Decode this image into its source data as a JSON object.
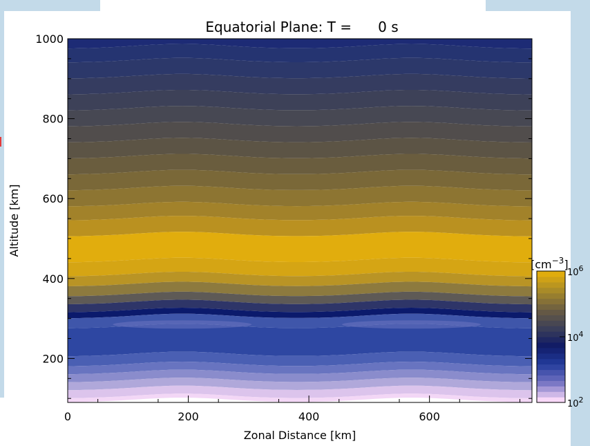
{
  "chart_data": {
    "type": "heatmap",
    "title": "Equatorial Plane: T =      0 s",
    "xlabel": "Zonal Distance [km]",
    "ylabel": "Altitude [km]",
    "xlim": [
      0,
      770
    ],
    "ylim": [
      90,
      1000
    ],
    "x_ticks": [
      0,
      200,
      400,
      600
    ],
    "y_ticks": [
      200,
      400,
      600,
      800,
      1000
    ],
    "colorbar": {
      "label": "[cm^-3]",
      "scale": "log",
      "range": [
        100,
        1000000
      ],
      "tick_labels": [
        "10^2",
        "10^4",
        "10^6"
      ],
      "colors": [
        "#f8d8f8",
        "#6f6fc0",
        "#223b9b",
        "#101a66",
        "#3c4058",
        "#6a5c42",
        "#a4882a",
        "#e0ac0e"
      ]
    },
    "bands": [
      {
        "altitude_top": 1000,
        "altitude_bottom": 975,
        "color": "#1d2b75"
      },
      {
        "altitude_top": 975,
        "altitude_bottom": 940,
        "color": "#253471"
      },
      {
        "altitude_top": 940,
        "altitude_bottom": 900,
        "color": "#2c386a"
      },
      {
        "altitude_top": 900,
        "altitude_bottom": 860,
        "color": "#353c60"
      },
      {
        "altitude_top": 860,
        "altitude_bottom": 820,
        "color": "#3d4158"
      },
      {
        "altitude_top": 820,
        "altitude_bottom": 780,
        "color": "#474853"
      },
      {
        "altitude_top": 780,
        "altitude_bottom": 740,
        "color": "#514d4c"
      },
      {
        "altitude_top": 740,
        "altitude_bottom": 700,
        "color": "#5c5445"
      },
      {
        "altitude_top": 700,
        "altitude_bottom": 660,
        "color": "#6a5d3e"
      },
      {
        "altitude_top": 660,
        "altitude_bottom": 620,
        "color": "#7a6838"
      },
      {
        "altitude_top": 620,
        "altitude_bottom": 580,
        "color": "#8d7532"
      },
      {
        "altitude_top": 580,
        "altitude_bottom": 545,
        "color": "#a2822a"
      },
      {
        "altitude_top": 545,
        "altitude_bottom": 505,
        "color": "#ba9120"
      },
      {
        "altitude_top": 505,
        "altitude_bottom": 440,
        "color": "#e1ad0d"
      },
      {
        "altitude_top": 440,
        "altitude_bottom": 405,
        "color": "#d5a514"
      },
      {
        "altitude_top": 405,
        "altitude_bottom": 380,
        "color": "#b99425"
      },
      {
        "altitude_top": 380,
        "altitude_bottom": 355,
        "color": "#8d7a3e"
      },
      {
        "altitude_top": 355,
        "altitude_bottom": 335,
        "color": "#5e5a56"
      },
      {
        "altitude_top": 335,
        "altitude_bottom": 315,
        "color": "#2e3568"
      },
      {
        "altitude_top": 315,
        "altitude_bottom": 300,
        "color": "#0b1a6c"
      },
      {
        "altitude_top": 300,
        "altitude_bottom": 275,
        "color": "#3f56aa"
      },
      {
        "altitude_top": 275,
        "altitude_bottom": 205,
        "color": "#2e47a2"
      },
      {
        "altitude_top": 205,
        "altitude_bottom": 180,
        "color": "#4a5fb3"
      },
      {
        "altitude_top": 180,
        "altitude_bottom": 160,
        "color": "#6874c0"
      },
      {
        "altitude_top": 160,
        "altitude_bottom": 140,
        "color": "#8a8ccc"
      },
      {
        "altitude_top": 140,
        "altitude_bottom": 120,
        "color": "#b0a8da"
      },
      {
        "altitude_top": 120,
        "altitude_bottom": 100,
        "color": "#dcc4ec"
      },
      {
        "altitude_top": 100,
        "altitude_bottom": 90,
        "color": "#f3d7f6"
      }
    ],
    "wave": {
      "crest_x": [
        190,
        570
      ],
      "amplitude_km": 12
    },
    "grid": false,
    "legend": "colorbar right"
  }
}
